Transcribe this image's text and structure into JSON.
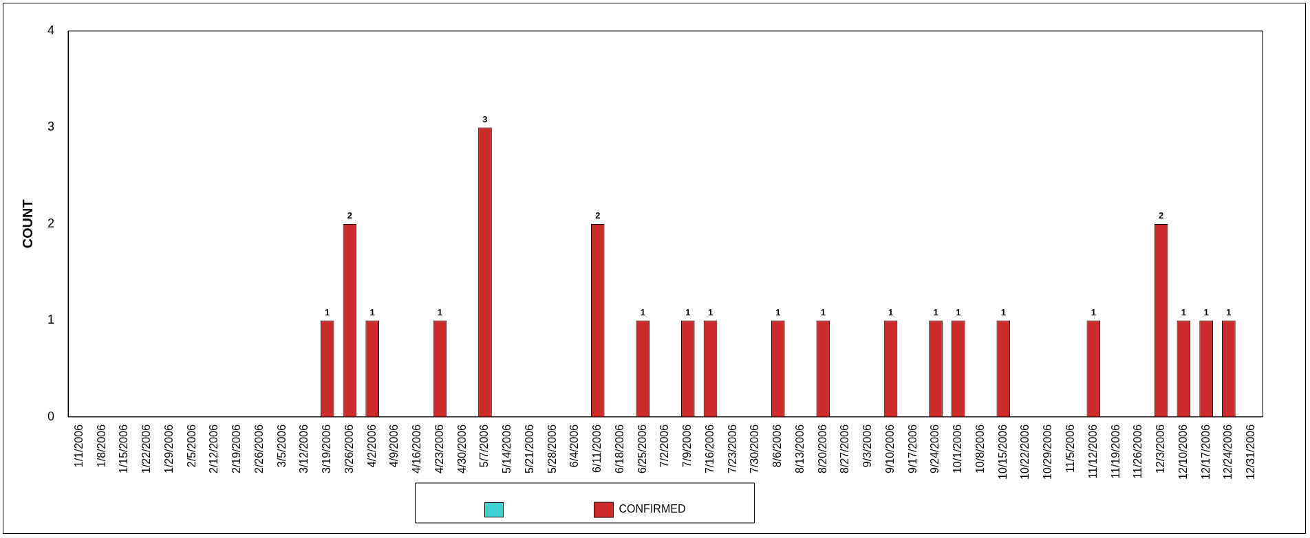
{
  "chart_data": {
    "type": "bar",
    "ylabel": "COUNT",
    "categories": [
      "1/1/2006",
      "1/8/2006",
      "1/15/2006",
      "1/22/2006",
      "1/29/2006",
      "2/5/2006",
      "2/12/2006",
      "2/19/2006",
      "2/26/2006",
      "3/5/2006",
      "3/12/2006",
      "3/19/2006",
      "3/26/2006",
      "4/2/2006",
      "4/9/2006",
      "4/16/2006",
      "4/23/2006",
      "4/30/2006",
      "5/7/2006",
      "5/14/2006",
      "5/21/2006",
      "5/28/2006",
      "6/4/2006",
      "6/11/2006",
      "6/18/2006",
      "6/25/2006",
      "7/2/2006",
      "7/9/2006",
      "7/16/2006",
      "7/23/2006",
      "7/30/2006",
      "8/6/2006",
      "8/13/2006",
      "8/20/2006",
      "8/27/2006",
      "9/3/2006",
      "9/10/2006",
      "9/17/2006",
      "9/24/2006",
      "10/1/2006",
      "10/8/2006",
      "10/15/2006",
      "10/22/2006",
      "10/29/2006",
      "11/5/2006",
      "11/12/2006",
      "11/19/2006",
      "11/26/2006",
      "12/3/2006",
      "12/10/2006",
      "12/17/2006",
      "12/24/2006",
      "12/31/2006"
    ],
    "series": [
      {
        "color": "#40d0d0",
        "values": [
          null,
          null,
          null,
          null,
          null,
          null,
          null,
          null,
          null,
          null,
          null,
          null,
          null,
          null,
          null,
          null,
          null,
          null,
          null,
          null,
          null,
          null,
          null,
          null,
          null,
          null,
          null,
          null,
          null,
          null,
          null,
          null,
          null,
          null,
          null,
          null,
          null,
          null,
          null,
          null,
          null,
          null,
          null,
          null,
          null,
          null,
          null,
          null,
          null,
          null,
          null,
          null,
          null
        ]
      },
      {
        "name": "CONFIRMED",
        "color": "#cc2b2b",
        "values": [
          0,
          0,
          0,
          0,
          0,
          0,
          0,
          0,
          0,
          0,
          0,
          1,
          2,
          1,
          0,
          0,
          1,
          0,
          3,
          0,
          0,
          0,
          0,
          2,
          0,
          1,
          0,
          1,
          1,
          0,
          0,
          1,
          0,
          1,
          0,
          0,
          1,
          0,
          1,
          1,
          0,
          1,
          0,
          0,
          0,
          1,
          0,
          0,
          2,
          1,
          1,
          1,
          0
        ],
        "value_labels": [
          null,
          null,
          null,
          null,
          null,
          null,
          null,
          null,
          null,
          null,
          null,
          "1",
          "2",
          "1",
          null,
          null,
          "1",
          null,
          "3",
          null,
          null,
          null,
          null,
          "2",
          null,
          "1",
          null,
          "1",
          "1",
          null,
          null,
          "1",
          null,
          "1",
          null,
          null,
          "1",
          null,
          "1",
          "1",
          null,
          "1",
          null,
          null,
          null,
          "1",
          null,
          null,
          "2",
          "1",
          "1",
          "1",
          null
        ]
      }
    ],
    "ylim": [
      0,
      4
    ],
    "yticks": [
      0,
      1,
      2,
      3,
      4
    ],
    "grid": false,
    "legend": "bottom"
  }
}
